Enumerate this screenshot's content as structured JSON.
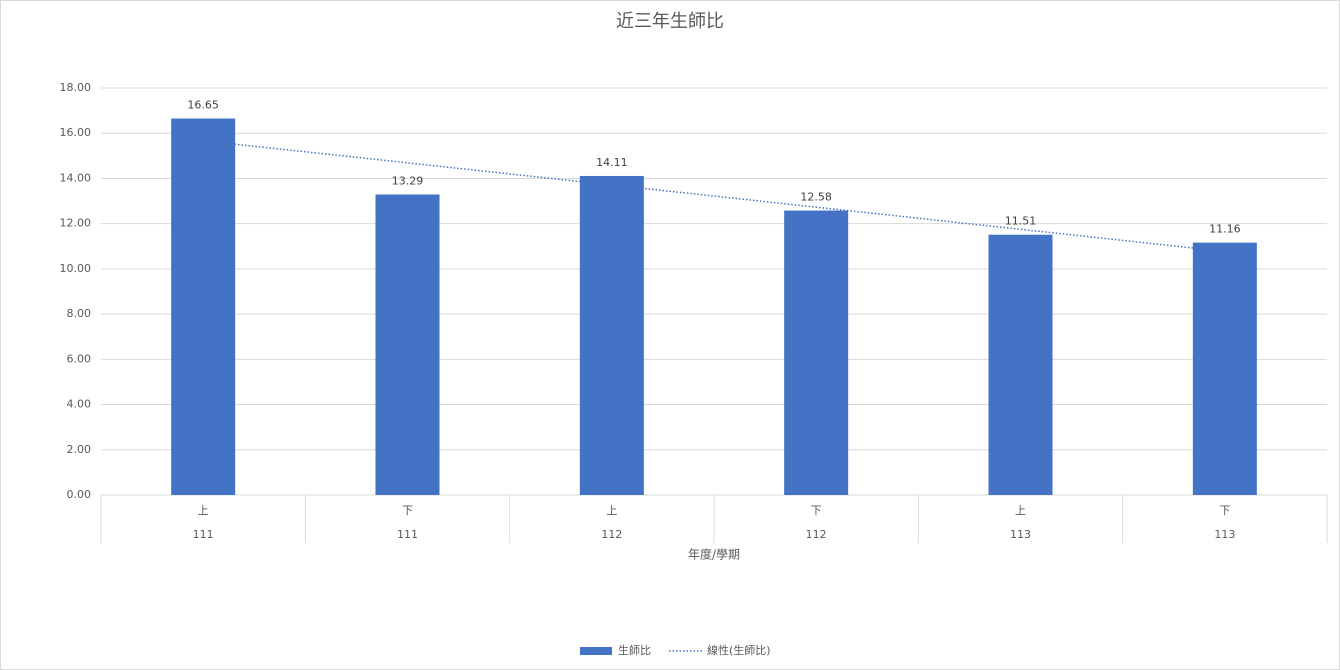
{
  "chart_data": {
    "type": "bar",
    "title": "近三年生師比",
    "categories": [
      "上",
      "下",
      "上",
      "下",
      "上",
      "下"
    ],
    "category_groups": [
      "111",
      "111",
      "112",
      "112",
      "113",
      "113"
    ],
    "x_label": "年度/學期",
    "series": [
      {
        "name": "生師比",
        "color": "#4472c4",
        "values": [
          16.65,
          13.29,
          14.11,
          12.58,
          11.51,
          11.16
        ]
      },
      {
        "name": "線性(生師比)",
        "type": "trendline",
        "color": "#4472c4",
        "values": [
          15.67,
          14.69,
          13.71,
          12.73,
          11.75,
          10.77
        ]
      }
    ],
    "ylim": [
      0,
      18
    ],
    "yticks": [
      {
        "value": 0,
        "label": "0.00"
      },
      {
        "value": 2,
        "label": "2.00"
      },
      {
        "value": 4,
        "label": "4.00"
      },
      {
        "value": 6,
        "label": "6.00"
      },
      {
        "value": 8,
        "label": "8.00"
      },
      {
        "value": 10,
        "label": "10.00"
      },
      {
        "value": 12,
        "label": "12.00"
      },
      {
        "value": 14,
        "label": "14.00"
      },
      {
        "value": 16,
        "label": "16.00"
      },
      {
        "value": 18,
        "label": "18.00"
      }
    ],
    "grid": true,
    "legend": "bottom"
  }
}
